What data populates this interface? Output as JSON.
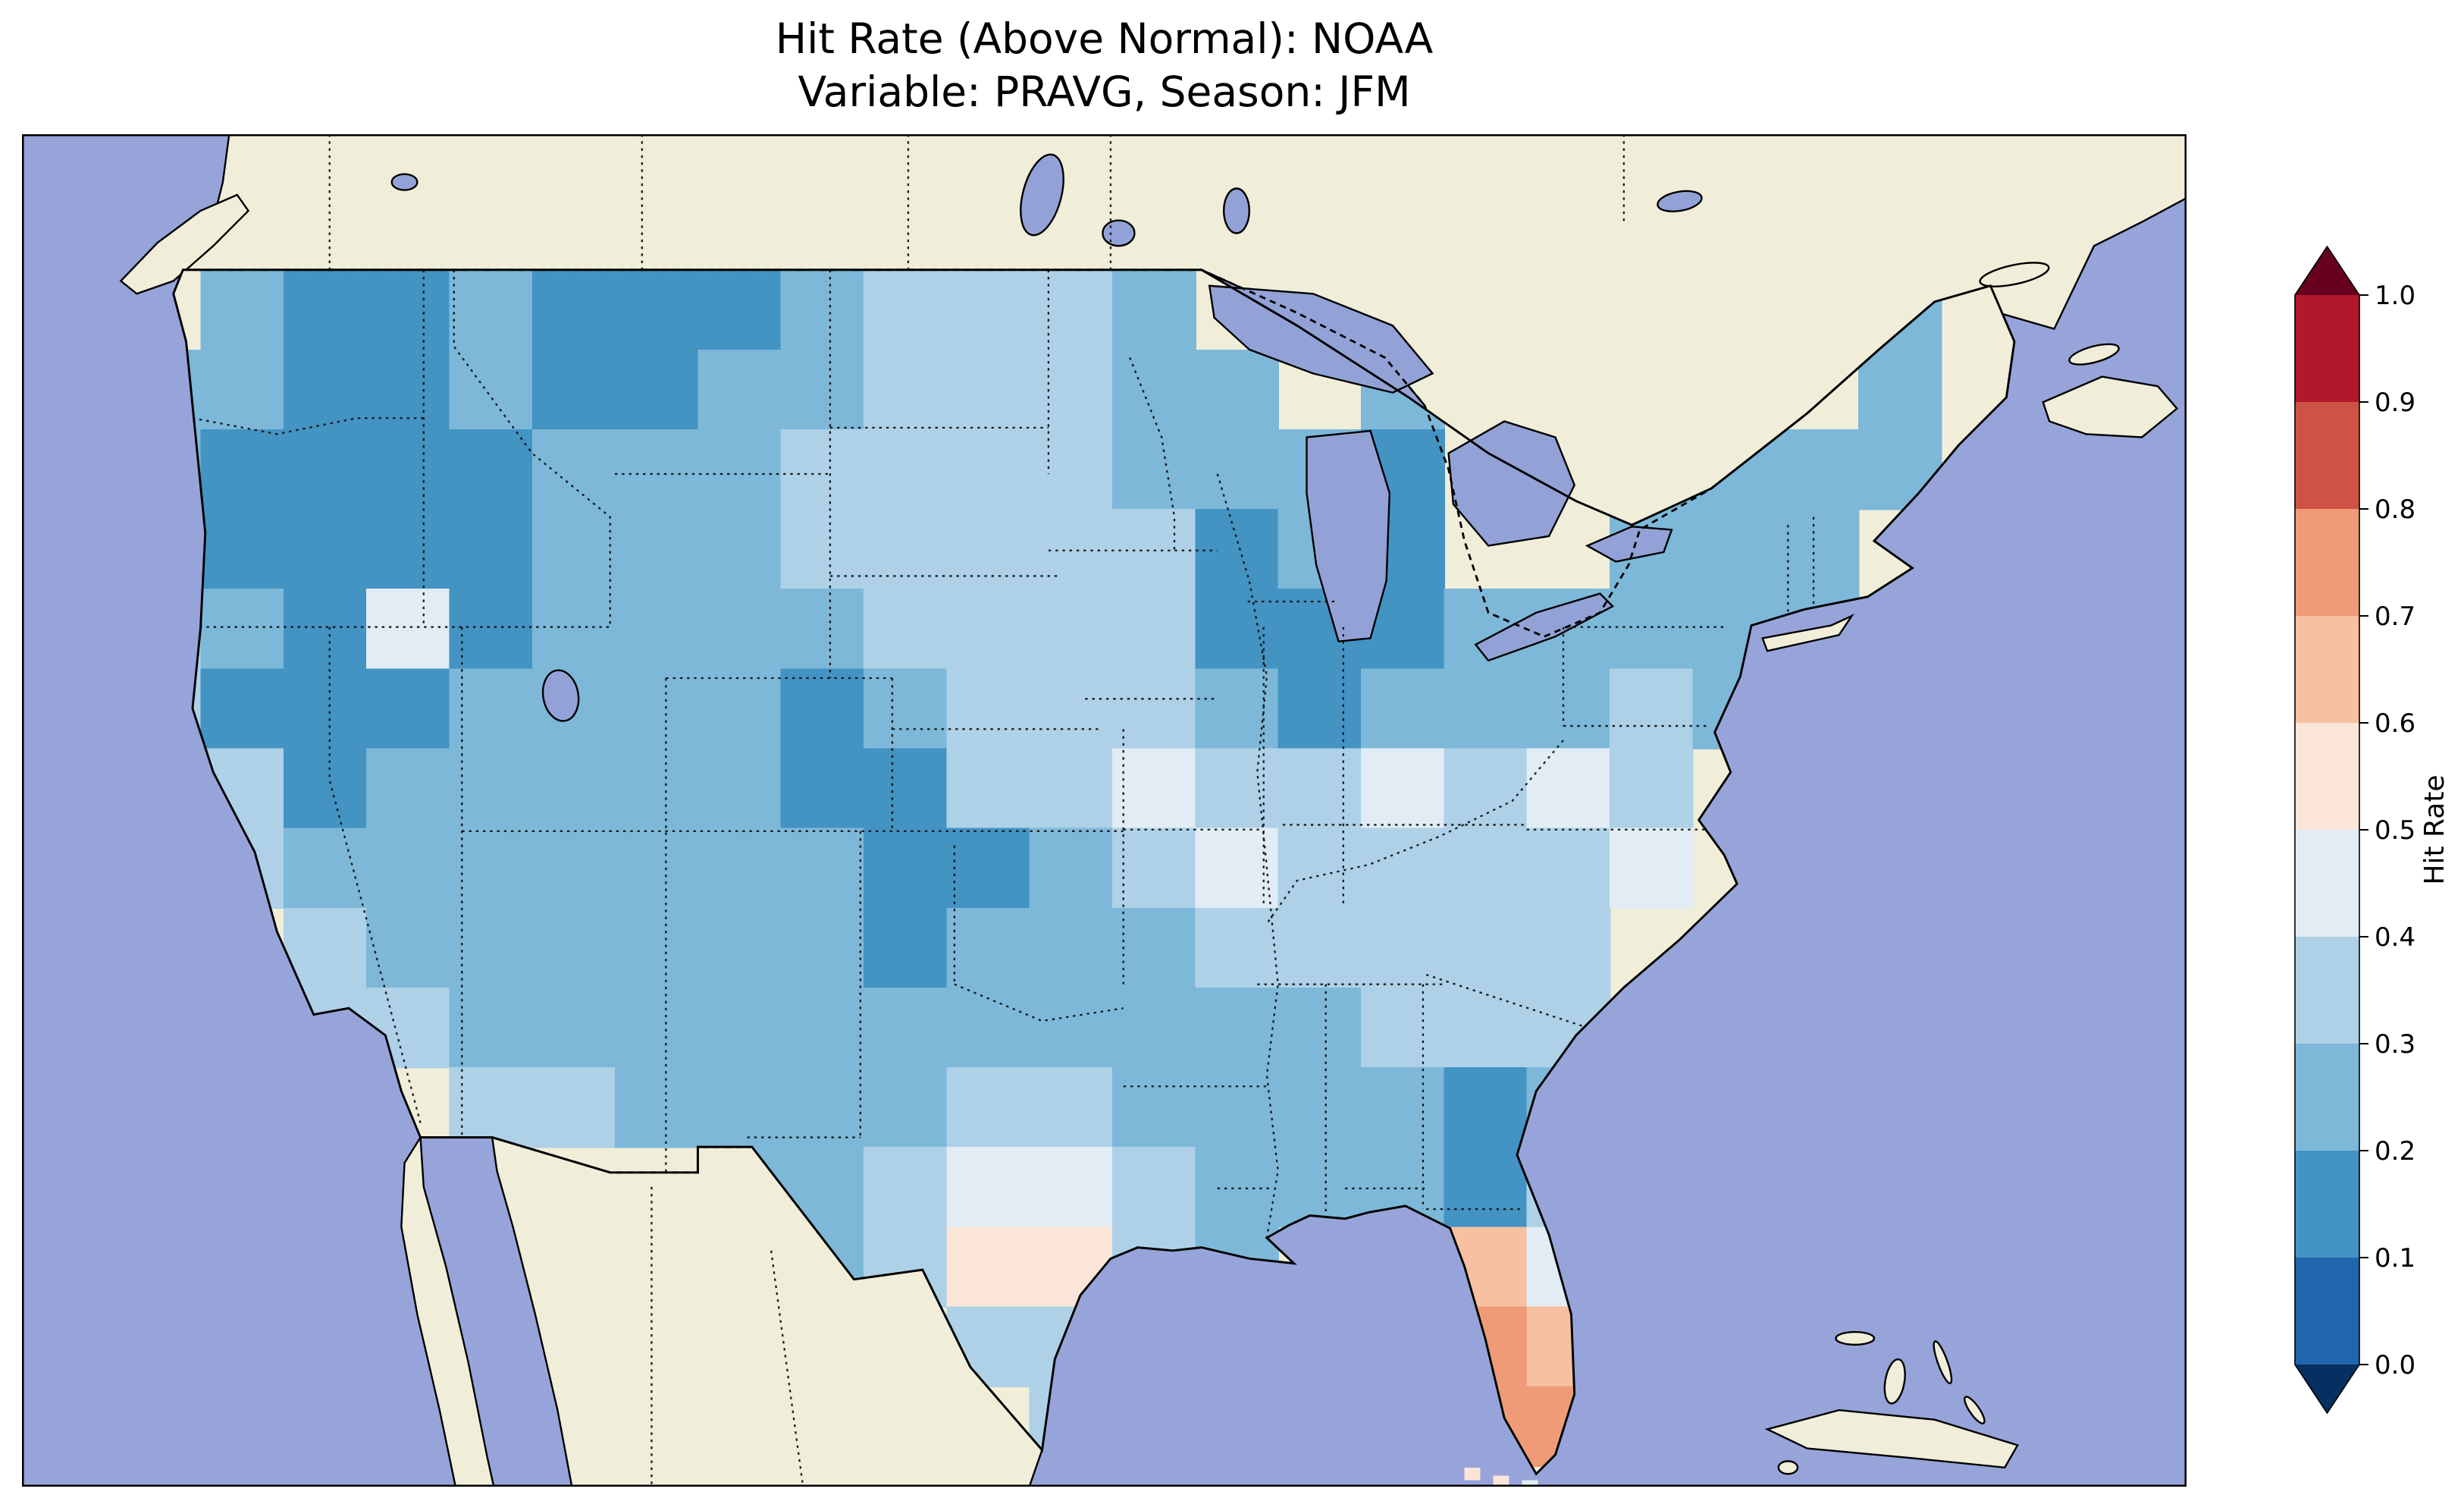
{
  "figure": {
    "title_line1": "Hit Rate (Above Normal): NOAA",
    "title_line2": "Variable: PRAVG, Season: JFM"
  },
  "map": {
    "ocean_color": "#97a4da",
    "land_color": "#f0eed9",
    "lake_color": "#93a2d6",
    "coastline_color": "#000000"
  },
  "colorbar": {
    "label": "Hit Rate",
    "ticks": [
      "1.0",
      "0.9",
      "0.8",
      "0.7",
      "0.6",
      "0.5",
      "0.4",
      "0.3",
      "0.2",
      "0.1",
      "0.0"
    ],
    "segment_colors_top_to_bottom": [
      "#b2182b",
      "#cf5246",
      "#ef9b78",
      "#f7c0a1",
      "#fbe5d8",
      "#e1ecf4",
      "#aed1e7",
      "#7db8d9",
      "#4393c3",
      "#2166ac"
    ],
    "extend_over_color": "#67001f",
    "extend_under_color": "#053061"
  },
  "chart_data": {
    "type": "heatmap",
    "title": "Hit Rate (Above Normal): NOAA",
    "subtitle": "Variable: PRAVG, Season: JFM",
    "dataset": "NOAA",
    "variable": "PRAVG",
    "season": "JFM",
    "colorbar_label": "Hit Rate",
    "value_range": [
      0.0,
      1.0
    ],
    "bin_width": 0.1,
    "colormap": "RdBu_r discrete with extend arrows",
    "bin_colors": [
      "#2166ac",
      "#4393c3",
      "#7db8d9",
      "#aed1e7",
      "#e1ecf4",
      "#fbe5d8",
      "#f7c0a1",
      "#ef9b78",
      "#cf5246",
      "#b2182b"
    ],
    "grid": {
      "description": "Approximate 23x15 gridded hit-rate field over CONUS read from the map; each digit d means hit rate in [d/10,(d+1)/10); '.' = no data (outside US)",
      "cell_origin": [
        60,
        85
      ],
      "cell_size": [
        52,
        50
      ],
      "rows": [
        ".211211123332........2.",
        "22112112233322.2.....2.",
        "2111122233332221..2222.",
        "2111122233333121..222..",
        "321412222333311122222..",
        "31112222123332122232...",
        "3312222211334334343....",
        ".322222221123433334....",
        "..3222222122233333.....",
        "..3322222222222333.....",
        "....33222233222212.....",
        ".......22344322213.....",
        ".......2235532..64.....",
        "..........33....76.....",
        "...........3....77....."
      ]
    },
    "regional_summary": [
      {
        "region": "Pacific Northwest and northern Rockies",
        "hit_rate": "0.1-0.3"
      },
      {
        "region": "Great Basin (Nevada/Utah) dark patches",
        "hit_rate": "0.1-0.2"
      },
      {
        "region": "Northern and central Plains",
        "hit_rate": "0.3-0.4"
      },
      {
        "region": "Upper Midwest (WI/MI/IL/IN) dark patch",
        "hit_rate": "0.1-0.2"
      },
      {
        "region": "SE Colorado / W Kansas / W Oklahoma dark patch",
        "hit_rate": "0.1-0.2"
      },
      {
        "region": "Ohio Valley / Mid-Atlantic white patches",
        "hit_rate": "0.4-0.5"
      },
      {
        "region": "Southeast excluding Florida",
        "hit_rate": "0.2-0.4"
      },
      {
        "region": "South Georgia / North Florida dark cells",
        "hit_rate": "0.1-0.2"
      },
      {
        "region": "South-central Texas pink patch",
        "hit_rate": "0.5-0.6"
      },
      {
        "region": "Florida peninsula (orange)",
        "hit_rate": "0.6-0.8"
      }
    ]
  }
}
